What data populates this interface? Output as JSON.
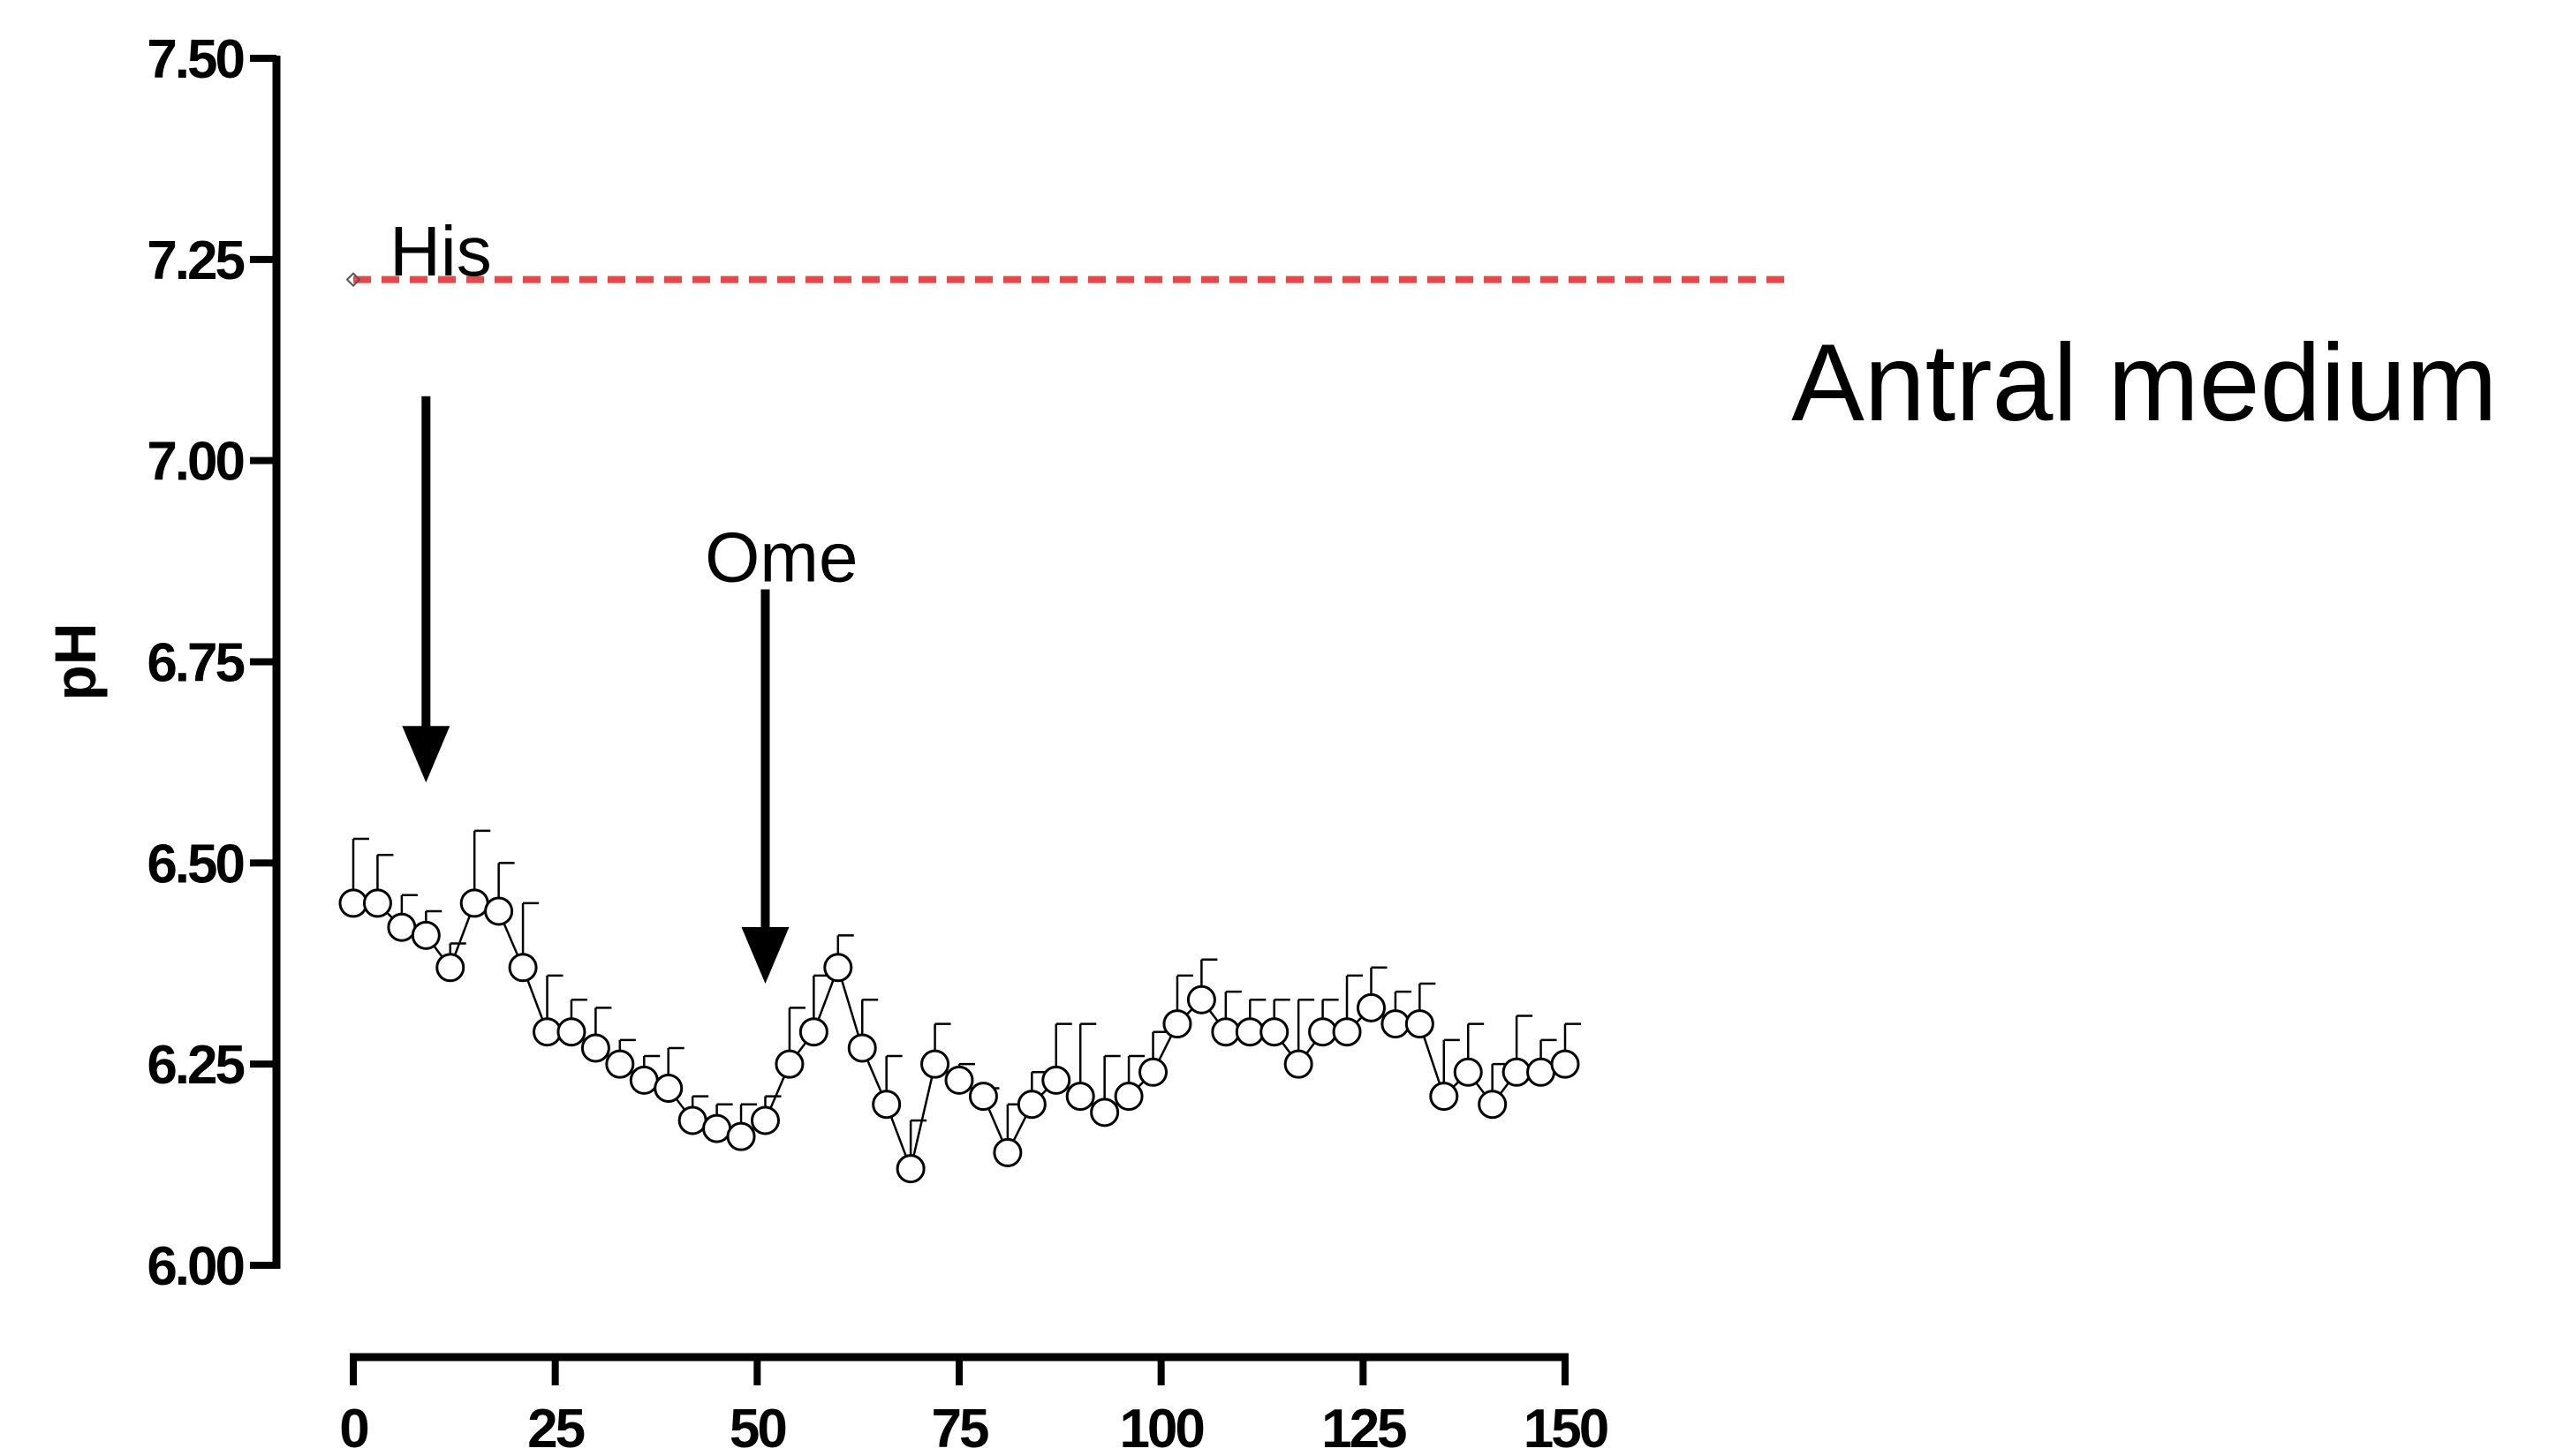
{
  "chart_data": {
    "type": "scatter",
    "title": "",
    "xlabel": "",
    "ylabel": "pH",
    "xlim": [
      0,
      150
    ],
    "ylim": [
      6.0,
      7.5
    ],
    "xticks": [
      0,
      25,
      50,
      75,
      100,
      125,
      150
    ],
    "xtick_labels": [
      "0",
      "25",
      "50",
      "75",
      "100",
      "125",
      "150"
    ],
    "yticks": [
      6.0,
      6.25,
      6.5,
      6.75,
      7.0,
      7.25,
      7.5
    ],
    "ytick_labels": [
      "6.00",
      "6.25",
      "6.50",
      "6.75",
      "7.00",
      "7.25",
      "7.50"
    ],
    "grid": false,
    "series": [
      {
        "marker": "open-circle",
        "line": true,
        "color": "#000000",
        "x": [
          0,
          3,
          6,
          9,
          12,
          15,
          18,
          21,
          24,
          27,
          30,
          33,
          36,
          39,
          42,
          45,
          48,
          51,
          54,
          57,
          60,
          63,
          66,
          69,
          72,
          75,
          78,
          81,
          84,
          87,
          90,
          93,
          96,
          99,
          102,
          105,
          108,
          111,
          114,
          117,
          120,
          123,
          126,
          129,
          132,
          135,
          138,
          141,
          144,
          147,
          150
        ],
        "y": [
          6.45,
          6.45,
          6.42,
          6.41,
          6.37,
          6.45,
          6.44,
          6.37,
          6.29,
          6.29,
          6.27,
          6.25,
          6.23,
          6.22,
          6.18,
          6.17,
          6.16,
          6.18,
          6.25,
          6.29,
          6.37,
          6.27,
          6.2,
          6.12,
          6.25,
          6.23,
          6.21,
          6.14,
          6.2,
          6.23,
          6.21,
          6.19,
          6.21,
          6.24,
          6.3,
          6.33,
          6.29,
          6.29,
          6.29,
          6.25,
          6.29,
          6.29,
          6.32,
          6.3,
          6.3,
          6.21,
          6.24,
          6.2,
          6.24,
          6.24,
          6.25
        ],
        "error_upper": [
          6.53,
          6.51,
          6.46,
          6.44,
          6.4,
          6.54,
          6.5,
          6.45,
          6.36,
          6.33,
          6.32,
          6.28,
          6.26,
          6.27,
          6.21,
          6.2,
          6.2,
          6.21,
          6.32,
          6.36,
          6.41,
          6.33,
          6.26,
          6.18,
          6.3,
          6.25,
          6.22,
          6.2,
          6.24,
          6.3,
          6.3,
          6.26,
          6.26,
          6.29,
          6.36,
          6.38,
          6.34,
          6.33,
          6.33,
          6.33,
          6.33,
          6.36,
          6.37,
          6.34,
          6.35,
          6.28,
          6.3,
          6.25,
          6.31,
          6.28,
          6.3
        ]
      }
    ],
    "reference_line": {
      "y": 7.225,
      "color": "#e8484a",
      "style": "dashed",
      "x_end": 178
    },
    "annotations": [
      {
        "text": "His",
        "x": 4.5,
        "y": 7.23
      },
      {
        "text": "Ome",
        "x": 53,
        "y": 6.85
      },
      {
        "text": "Antral medium",
        "x": 178,
        "y": 7.05
      }
    ],
    "arrows": [
      {
        "name": "his",
        "x": 9,
        "y_from": 7.08,
        "y_to": 6.6
      },
      {
        "name": "ome",
        "x": 51,
        "y_from": 6.84,
        "y_to": 6.35
      }
    ],
    "reference_marker": {
      "x": 0,
      "y": 7.225
    }
  }
}
